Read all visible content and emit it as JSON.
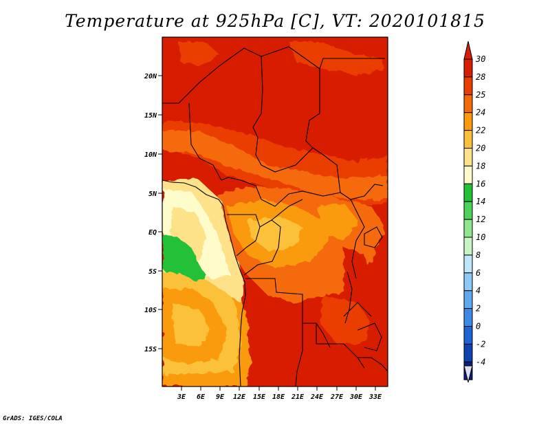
{
  "title": "Temperature at 925hPa [C], VT: 2020101815",
  "footer": "GrADS: IGES/COLA",
  "map": {
    "lon_range": [
      0,
      34.8
    ],
    "lat_range": [
      -19.5,
      24.5
    ],
    "lat_ticks": [
      "20N",
      "15N",
      "10N",
      "5N",
      "EQ",
      "5S",
      "10S",
      "15S"
    ],
    "lon_ticks": [
      "3E",
      "6E",
      "9E",
      "12E",
      "15E",
      "18E",
      "21E",
      "24E",
      "27E",
      "30E",
      "33E"
    ],
    "field": "temperature at 925hPa",
    "units": "C"
  },
  "colorbar": {
    "labels": [
      "30",
      "28",
      "25",
      "24",
      "22",
      "20",
      "18",
      "16",
      "14",
      "12",
      "10",
      "8",
      "6",
      "4",
      "2",
      "0",
      "-2",
      "-4"
    ],
    "colors": [
      "#d81e05",
      "#ea3d02",
      "#f46a0a",
      "#fa9a0c",
      "#fbc13a",
      "#fde28a",
      "#fffccc",
      "#23c138",
      "#4fd25c",
      "#8fe68c",
      "#c8f5c3",
      "#bfe6fb",
      "#8fc9f5",
      "#5fa8ee",
      "#3d8ae6",
      "#1e64d5",
      "#0e43b0",
      "#0a1f78"
    ],
    "top_arrow_color": "#d81e05",
    "bottom_arrow_color": "#dcdcf5"
  }
}
